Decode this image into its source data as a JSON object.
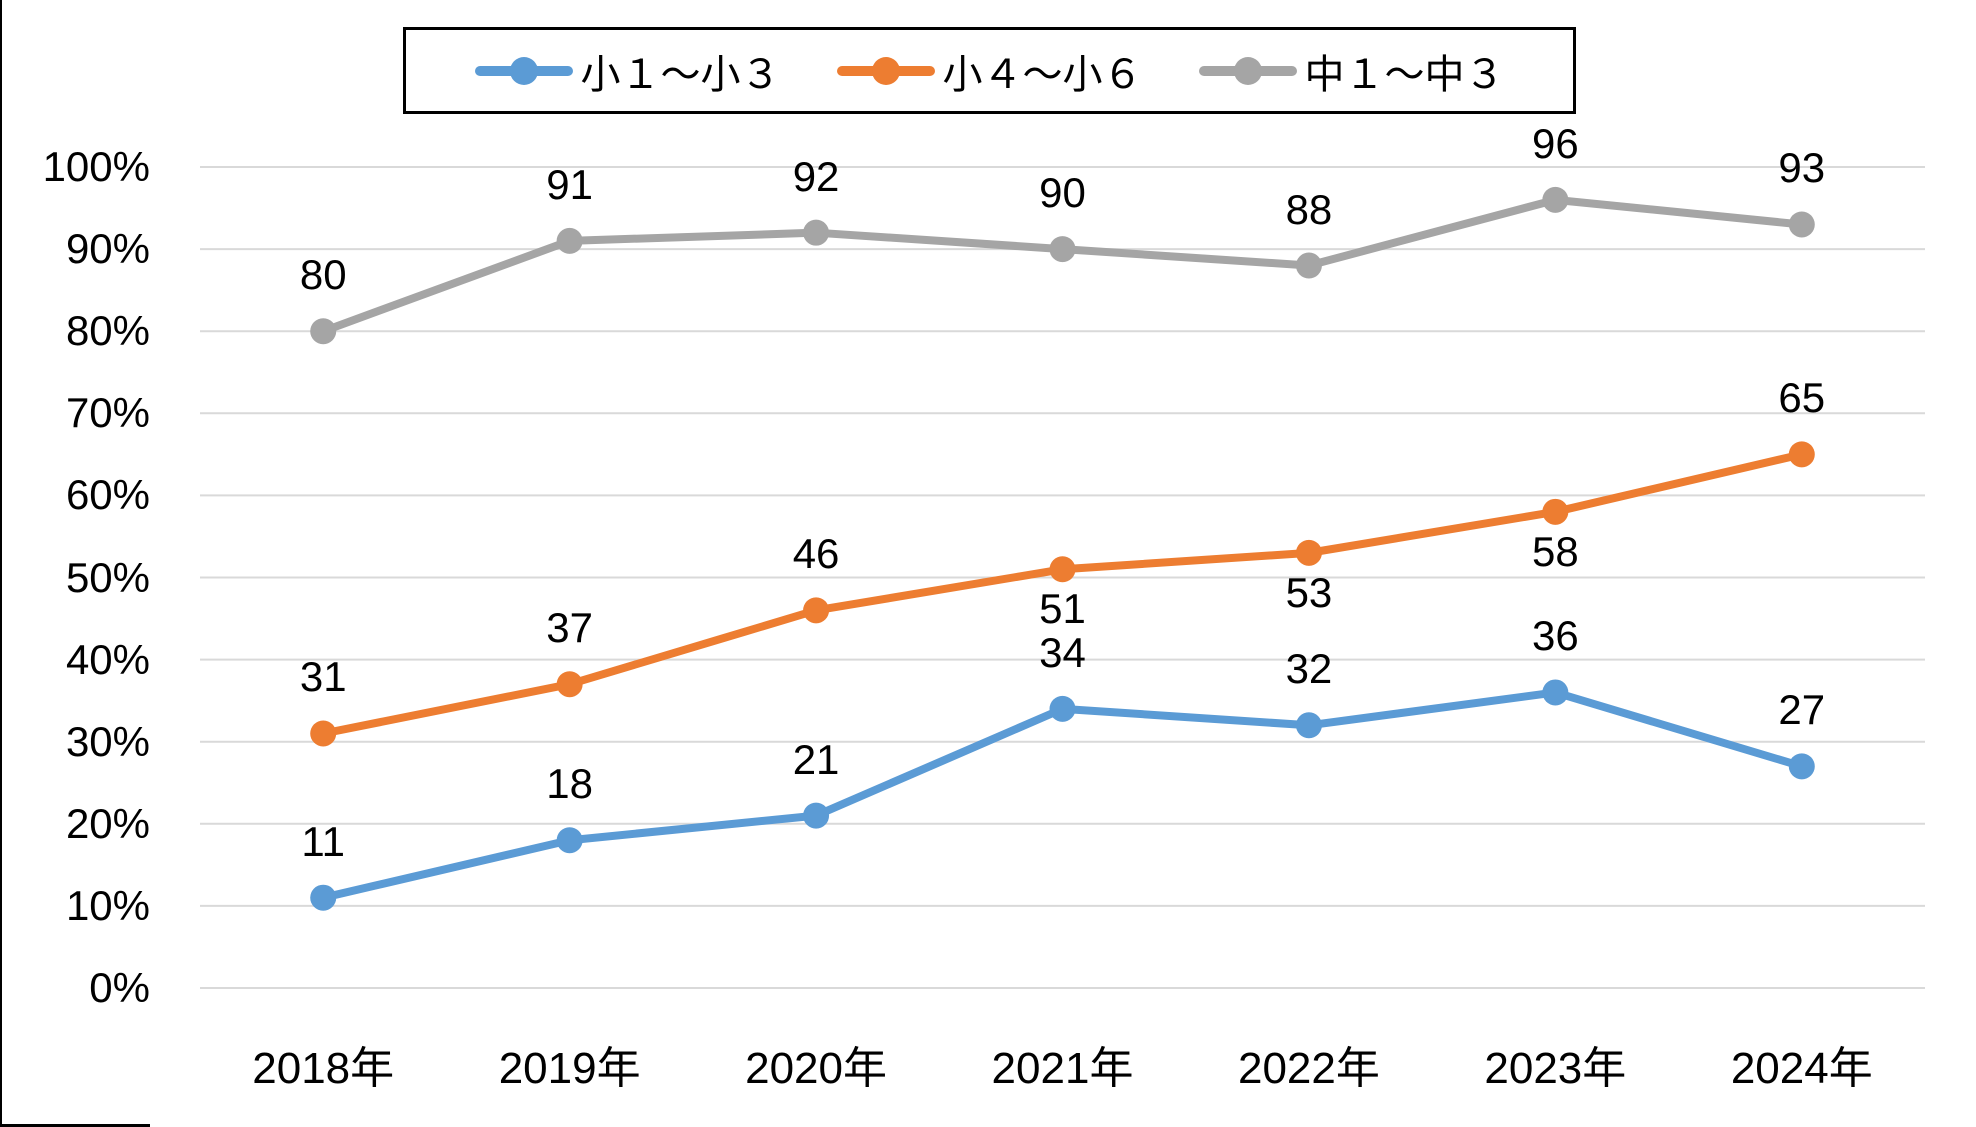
{
  "chart_data": {
    "type": "line",
    "title": "",
    "categories": [
      "2018年",
      "2019年",
      "2020年",
      "2021年",
      "2022年",
      "2023年",
      "2024年"
    ],
    "series": [
      {
        "name": "小１～小３",
        "color": "#5B9BD5",
        "values": [
          11,
          18,
          21,
          34,
          32,
          36,
          27
        ],
        "label_position": [
          "above",
          "above",
          "above",
          "above",
          "above",
          "above",
          "above"
        ]
      },
      {
        "name": "小４～小６",
        "color": "#ED7D31",
        "values": [
          31,
          37,
          46,
          51,
          53,
          58,
          65
        ],
        "label_position": [
          "above",
          "above",
          "above",
          "below",
          "below",
          "below",
          "above"
        ]
      },
      {
        "name": "中１～中３",
        "color": "#A5A5A5",
        "values": [
          80,
          91,
          92,
          90,
          88,
          96,
          93
        ],
        "label_position": [
          "above",
          "above",
          "above",
          "above",
          "above",
          "above",
          "above"
        ]
      }
    ],
    "y_axis": {
      "min": 0,
      "max": 100,
      "step": 10,
      "suffix": "%",
      "tick_labels": [
        "0%",
        "10%",
        "20%",
        "30%",
        "40%",
        "50%",
        "60%",
        "70%",
        "80%",
        "90%",
        "100%"
      ]
    },
    "xlabel": "",
    "ylabel": "",
    "grid": true,
    "data_labels": true,
    "legend_position": "top",
    "colors": {
      "gridline": "#D9D9D9",
      "text": "#000000",
      "legend_border": "#000000",
      "background": "#FFFFFF"
    }
  }
}
